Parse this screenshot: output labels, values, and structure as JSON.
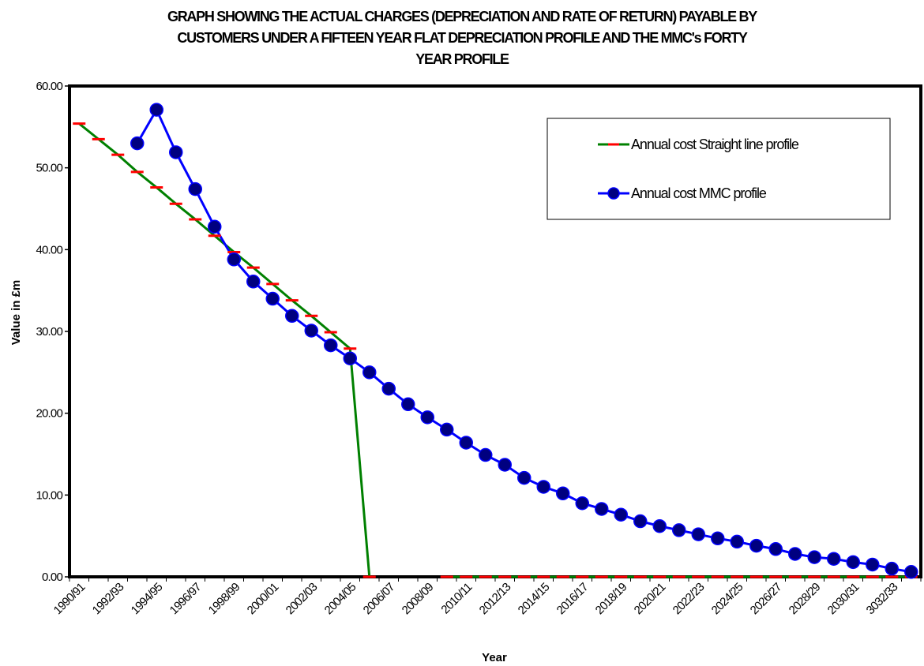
{
  "chart_data": {
    "type": "line",
    "title_lines": [
      "GRAPH SHOWING THE ACTUAL CHARGES (DEPRECIATION AND RATE OF RETURN) PAYABLE BY",
      "CUSTOMERS UNDER A FIFTEEN YEAR FLAT DEPRECIATION PROFILE AND THE MMC's FORTY",
      "YEAR PROFILE"
    ],
    "xlabel": "Year",
    "ylabel": "Value in £m",
    "ylim": [
      0,
      60
    ],
    "yticks": [
      "0.00",
      "10.00",
      "20.00",
      "30.00",
      "40.00",
      "50.00",
      "60.00"
    ],
    "x_tick_labels": [
      "1990/91",
      "1992/93",
      "1994/95",
      "1996/97",
      "1998/99",
      "2000/01",
      "2002/03",
      "2004/05",
      "2006/07",
      "2008/09",
      "2010/11",
      "2012/13",
      "2014/15",
      "2016/17",
      "2018/19",
      "2020/21",
      "2022/23",
      "2024/25",
      "2026/27",
      "2028/29",
      "2030/31",
      "3032/33"
    ],
    "num_categories": 44,
    "grid": false,
    "legend_position": "top-right",
    "series": [
      {
        "name": "Annual cost Straight line profile",
        "color": "#008000",
        "marker": "dash",
        "marker_color": "#ff0000",
        "values": [
          55.4,
          53.5,
          51.6,
          49.5,
          47.6,
          45.6,
          43.7,
          41.7,
          39.7,
          37.8,
          35.8,
          33.8,
          31.9,
          29.9,
          27.9,
          0,
          null,
          null,
          null,
          0,
          0,
          0,
          0,
          0,
          0,
          0,
          0,
          0,
          0,
          0,
          0,
          0,
          0,
          0,
          0,
          0,
          0,
          0,
          0,
          0,
          0,
          0,
          0,
          0
        ]
      },
      {
        "name": "Annual cost MMC profile",
        "color": "#0000ff",
        "marker": "circle",
        "marker_color": "#000080",
        "values": [
          null,
          null,
          null,
          53.0,
          57.1,
          51.9,
          47.4,
          42.8,
          38.8,
          36.1,
          34.0,
          31.9,
          30.1,
          28.3,
          26.7,
          25.0,
          23.0,
          21.1,
          19.5,
          18.0,
          16.4,
          14.9,
          13.7,
          12.1,
          11.0,
          10.2,
          9.0,
          8.3,
          7.6,
          6.8,
          6.2,
          5.7,
          5.2,
          4.7,
          4.3,
          3.8,
          3.4,
          2.8,
          2.4,
          2.2,
          1.8,
          1.5,
          1.0,
          0.6
        ]
      }
    ]
  }
}
